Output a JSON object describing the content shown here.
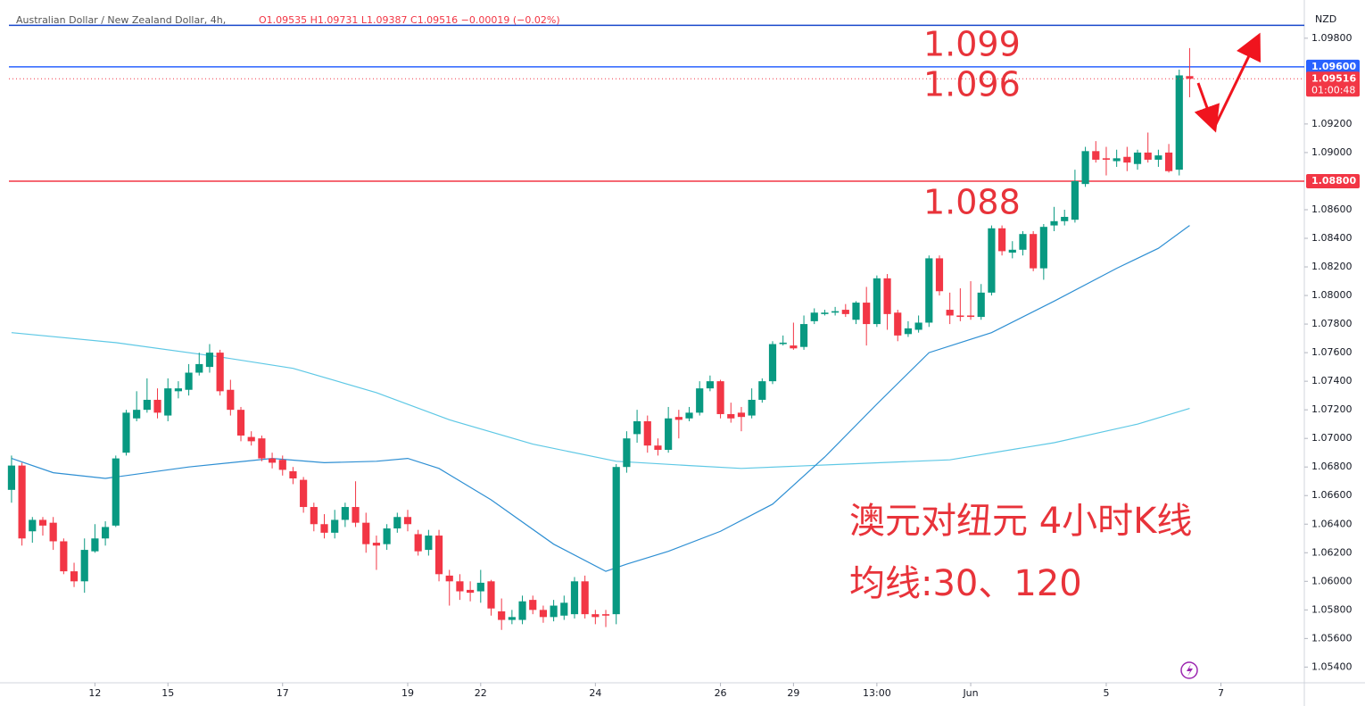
{
  "chart_data": {
    "type": "candlestick",
    "header": {
      "title": "Australian Dollar / New Zealand Dollar, 4h,",
      "ohlc": "O1.09535  H1.09731  L1.09387  C1.09516  −0.00019 (−0.02%)"
    },
    "currency": "NZD",
    "up_color": "#089981",
    "down_color": "#f23645",
    "xlim": [
      -0.25,
      124
    ],
    "ylim": [
      1.0529,
      1.0998
    ],
    "xticks": [
      {
        "value": 8,
        "label": "12"
      },
      {
        "value": 15,
        "label": "15"
      },
      {
        "value": 26,
        "label": "17"
      },
      {
        "value": 38,
        "label": "19"
      },
      {
        "value": 45,
        "label": "22"
      },
      {
        "value": 56,
        "label": "24"
      },
      {
        "value": 68,
        "label": "26"
      },
      {
        "value": 75,
        "label": "29"
      },
      {
        "value": 83,
        "label": "13:00"
      },
      {
        "value": 92,
        "label": "Jun"
      },
      {
        "value": 105,
        "label": "5"
      },
      {
        "value": 116,
        "label": "7"
      }
    ],
    "yticks": [
      {
        "value": 1.054,
        "label": "1.05400"
      },
      {
        "value": 1.056,
        "label": "1.05600"
      },
      {
        "value": 1.058,
        "label": "1.05800"
      },
      {
        "value": 1.06,
        "label": "1.06000"
      },
      {
        "value": 1.062,
        "label": "1.06200"
      },
      {
        "value": 1.064,
        "label": "1.06400"
      },
      {
        "value": 1.066,
        "label": "1.06600"
      },
      {
        "value": 1.068,
        "label": "1.06800"
      },
      {
        "value": 1.07,
        "label": "1.07000"
      },
      {
        "value": 1.072,
        "label": "1.07200"
      },
      {
        "value": 1.074,
        "label": "1.07400"
      },
      {
        "value": 1.076,
        "label": "1.07600"
      },
      {
        "value": 1.078,
        "label": "1.07800"
      },
      {
        "value": 1.08,
        "label": "1.08000"
      },
      {
        "value": 1.082,
        "label": "1.08200"
      },
      {
        "value": 1.084,
        "label": "1.08400"
      },
      {
        "value": 1.086,
        "label": "1.08600"
      },
      {
        "value": 1.09,
        "label": "1.09000"
      },
      {
        "value": 1.092,
        "label": "1.09200"
      },
      {
        "value": 1.098,
        "label": "1.09800"
      }
    ],
    "grid": false,
    "candles": [
      [
        1.0664,
        1.0688,
        1.0655,
        1.0681
      ],
      [
        1.0681,
        1.0683,
        1.0625,
        1.063
      ],
      [
        1.0635,
        1.0645,
        1.0627,
        1.0643
      ],
      [
        1.0643,
        1.0645,
        1.0632,
        1.0639
      ],
      [
        1.0641,
        1.0645,
        1.0622,
        1.0628
      ],
      [
        1.0628,
        1.063,
        1.0605,
        1.0607
      ],
      [
        1.0607,
        1.0613,
        1.0596,
        1.06
      ],
      [
        1.06,
        1.063,
        1.0592,
        1.0622
      ],
      [
        1.0621,
        1.064,
        1.062,
        1.063
      ],
      [
        1.063,
        1.0642,
        1.0625,
        1.0638
      ],
      [
        1.0639,
        1.0688,
        1.0638,
        1.0686
      ],
      [
        1.069,
        1.072,
        1.0688,
        1.0718
      ],
      [
        1.0714,
        1.0733,
        1.0712,
        1.072
      ],
      [
        1.072,
        1.0742,
        1.0718,
        1.0727
      ],
      [
        1.0727,
        1.0735,
        1.0714,
        1.0718
      ],
      [
        1.0716,
        1.0742,
        1.0712,
        1.0735
      ],
      [
        1.0733,
        1.074,
        1.0728,
        1.0735
      ],
      [
        1.0734,
        1.0752,
        1.073,
        1.0746
      ],
      [
        1.0746,
        1.076,
        1.0744,
        1.0752
      ],
      [
        1.075,
        1.0766,
        1.0746,
        1.076
      ],
      [
        1.076,
        1.0762,
        1.073,
        1.0733
      ],
      [
        1.0734,
        1.0741,
        1.0716,
        1.072
      ],
      [
        1.072,
        1.0722,
        1.0698,
        1.0702
      ],
      [
        1.0701,
        1.0705,
        1.0695,
        1.0698
      ],
      [
        1.07,
        1.0702,
        1.0684,
        1.0686
      ],
      [
        1.0686,
        1.069,
        1.0679,
        1.0683
      ],
      [
        1.0685,
        1.0688,
        1.0674,
        1.0678
      ],
      [
        1.0677,
        1.068,
        1.0668,
        1.0672
      ],
      [
        1.0671,
        1.0673,
        1.0648,
        1.0652
      ],
      [
        1.0652,
        1.0655,
        1.0635,
        1.064
      ],
      [
        1.064,
        1.0647,
        1.063,
        1.0634
      ],
      [
        1.0634,
        1.065,
        1.063,
        1.0643
      ],
      [
        1.0643,
        1.0655,
        1.0638,
        1.0652
      ],
      [
        1.0652,
        1.067,
        1.0638,
        1.0641
      ],
      [
        1.0641,
        1.0648,
        1.062,
        1.0626
      ],
      [
        1.0627,
        1.0632,
        1.0608,
        1.0625
      ],
      [
        1.0626,
        1.064,
        1.0622,
        1.0637
      ],
      [
        1.0637,
        1.0648,
        1.0634,
        1.0645
      ],
      [
        1.0645,
        1.065,
        1.0635,
        1.064
      ],
      [
        1.0633,
        1.0636,
        1.0618,
        1.0621
      ],
      [
        1.0622,
        1.0636,
        1.0618,
        1.0632
      ],
      [
        1.0632,
        1.0636,
        1.06,
        1.0605
      ],
      [
        1.0604,
        1.0608,
        1.0583,
        1.06
      ],
      [
        1.06,
        1.0605,
        1.0587,
        1.0593
      ],
      [
        1.0594,
        1.06,
        1.0586,
        1.0592
      ],
      [
        1.0593,
        1.0608,
        1.0585,
        1.0599
      ],
      [
        1.06,
        1.0601,
        1.0576,
        1.0581
      ],
      [
        1.0579,
        1.0588,
        1.0566,
        1.0573
      ],
      [
        1.0573,
        1.058,
        1.057,
        1.0575
      ],
      [
        1.0573,
        1.059,
        1.057,
        1.0586
      ],
      [
        1.0587,
        1.059,
        1.0577,
        1.058
      ],
      [
        1.058,
        1.0583,
        1.0571,
        1.0575
      ],
      [
        1.0575,
        1.0587,
        1.0572,
        1.0583
      ],
      [
        1.0576,
        1.059,
        1.0573,
        1.0585
      ],
      [
        1.0577,
        1.0603,
        1.0574,
        1.06
      ],
      [
        1.06,
        1.0604,
        1.0574,
        1.0577
      ],
      [
        1.0577,
        1.058,
        1.057,
        1.0575
      ],
      [
        1.0577,
        1.058,
        1.0568,
        1.0576
      ],
      [
        1.0577,
        1.0682,
        1.057,
        1.068
      ],
      [
        1.068,
        1.0705,
        1.0676,
        1.07
      ],
      [
        1.0703,
        1.072,
        1.0697,
        1.0712
      ],
      [
        1.0712,
        1.0716,
        1.069,
        1.0695
      ],
      [
        1.0695,
        1.07,
        1.0688,
        1.0692
      ],
      [
        1.0692,
        1.0722,
        1.069,
        1.0714
      ],
      [
        1.0715,
        1.072,
        1.07,
        1.0713
      ],
      [
        1.0714,
        1.0722,
        1.0712,
        1.0718
      ],
      [
        1.0718,
        1.074,
        1.0716,
        1.0735
      ],
      [
        1.0735,
        1.0744,
        1.0733,
        1.074
      ],
      [
        1.074,
        1.0741,
        1.0714,
        1.0717
      ],
      [
        1.0717,
        1.0725,
        1.0711,
        1.0714
      ],
      [
        1.0718,
        1.0722,
        1.0705,
        1.0715
      ],
      [
        1.0716,
        1.0735,
        1.0714,
        1.0727
      ],
      [
        1.0727,
        1.0742,
        1.0725,
        1.074
      ],
      [
        1.074,
        1.0768,
        1.0738,
        1.0766
      ],
      [
        1.0766,
        1.0772,
        1.0765,
        1.0767
      ],
      [
        1.0765,
        1.0781,
        1.0762,
        1.0763
      ],
      [
        1.0764,
        1.0786,
        1.0762,
        1.078
      ],
      [
        1.0782,
        1.0791,
        1.078,
        1.0788
      ],
      [
        1.0787,
        1.079,
        1.0786,
        1.0788
      ],
      [
        1.0788,
        1.0792,
        1.0786,
        1.0789
      ],
      [
        1.079,
        1.0794,
        1.0785,
        1.0787
      ],
      [
        1.0783,
        1.0796,
        1.078,
        1.0795
      ],
      [
        1.0795,
        1.0806,
        1.0765,
        1.078
      ],
      [
        1.078,
        1.0814,
        1.0778,
        1.0812
      ],
      [
        1.0812,
        1.0815,
        1.0776,
        1.0787
      ],
      [
        1.0788,
        1.079,
        1.0768,
        1.0772
      ],
      [
        1.0773,
        1.0782,
        1.0771,
        1.0777
      ],
      [
        1.0776,
        1.0786,
        1.0774,
        1.0781
      ],
      [
        1.0781,
        1.0828,
        1.0778,
        1.0826
      ],
      [
        1.0826,
        1.0828,
        1.08,
        1.0803
      ],
      [
        1.079,
        1.0802,
        1.078,
        1.0786
      ],
      [
        1.0786,
        1.0805,
        1.0782,
        1.0785
      ],
      [
        1.0786,
        1.081,
        1.0783,
        1.0785
      ],
      [
        1.0785,
        1.0808,
        1.0783,
        1.0802
      ],
      [
        1.0802,
        1.0849,
        1.08,
        1.0847
      ],
      [
        1.0847,
        1.0849,
        1.0828,
        1.0831
      ],
      [
        1.083,
        1.0838,
        1.0826,
        1.0832
      ],
      [
        1.0832,
        1.0845,
        1.0828,
        1.0843
      ],
      [
        1.0843,
        1.0845,
        1.0817,
        1.0819
      ],
      [
        1.0819,
        1.085,
        1.0811,
        1.0848
      ],
      [
        1.0849,
        1.0862,
        1.0845,
        1.0852
      ],
      [
        1.0852,
        1.086,
        1.0849,
        1.0855
      ],
      [
        1.0853,
        1.0888,
        1.0851,
        1.088
      ],
      [
        1.0878,
        1.0904,
        1.0876,
        1.0901
      ],
      [
        1.0901,
        1.0908,
        1.0893,
        1.0895
      ],
      [
        1.0896,
        1.0904,
        1.0884,
        1.0895
      ],
      [
        1.0894,
        1.0902,
        1.089,
        1.0896
      ],
      [
        1.0897,
        1.0904,
        1.0887,
        1.0893
      ],
      [
        1.0892,
        1.0902,
        1.0888,
        1.09
      ],
      [
        1.09,
        1.0914,
        1.0893,
        1.0895
      ],
      [
        1.0895,
        1.0902,
        1.089,
        1.0898
      ],
      [
        1.09,
        1.0906,
        1.0886,
        1.0887
      ],
      [
        1.0888,
        1.0958,
        1.0884,
        1.0954
      ],
      [
        1.09535,
        1.09731,
        1.09387,
        1.09516
      ]
    ],
    "lines": [
      {
        "color": "#5ec8e5",
        "x": [
          0,
          10,
          20,
          27,
          35,
          42,
          50,
          58,
          65,
          70,
          80,
          90,
          100,
          108,
          113
        ],
        "values": [
          1.0774,
          1.0767,
          1.0757,
          1.0749,
          1.0732,
          1.0713,
          1.0696,
          1.0684,
          1.0681,
          1.0679,
          1.0682,
          1.0685,
          1.0697,
          1.071,
          1.0721
        ]
      },
      {
        "color": "#2e8fd3",
        "x": [
          0,
          4,
          9,
          17,
          25,
          30,
          35,
          38,
          41,
          46,
          52,
          57,
          59,
          63,
          68,
          73,
          78,
          83,
          88,
          94,
          100,
          106,
          110,
          113
        ],
        "values": [
          1.0686,
          1.0676,
          1.0672,
          1.068,
          1.0686,
          1.0683,
          1.0684,
          1.0686,
          1.0679,
          1.0657,
          1.0626,
          1.0607,
          1.0612,
          1.0621,
          1.0635,
          1.0654,
          1.0687,
          1.0724,
          1.076,
          1.0774,
          1.0796,
          1.0819,
          1.0833,
          1.0849
        ]
      }
    ],
    "hlines": [
      {
        "value": 1.0989,
        "color": "#1848cc"
      },
      {
        "value": 1.096,
        "color": "#2962ff"
      },
      {
        "value": 1.088,
        "color": "#f23645"
      }
    ],
    "price_labels": [
      {
        "value": 1.096,
        "label": "1.09600",
        "color": "#2962ff"
      },
      {
        "value": 1.09516,
        "label": "1.09516",
        "color": "#f23645",
        "countdown": "01:00:48"
      },
      {
        "value": 1.088,
        "label": "1.08800",
        "color": "#f23645"
      }
    ],
    "annotations": [
      {
        "text": "1.099",
        "color": "#e8333a"
      },
      {
        "text": "1.096",
        "color": "#e8333a"
      },
      {
        "text": "1.088",
        "color": "#e8333a"
      },
      {
        "text": "澳元对纽元 4小时K线",
        "color": "#e8333a"
      },
      {
        "text": "均线:30、120",
        "color": "#e8333a"
      }
    ]
  }
}
